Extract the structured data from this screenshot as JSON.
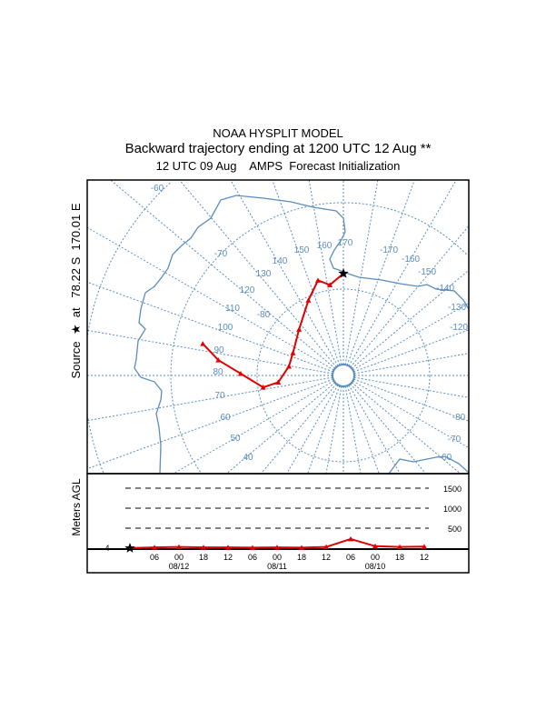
{
  "title": {
    "line1": "NOAA HYSPLIT MODEL",
    "line2": "Backward trajectory ending at 1200 UTC 12 Aug **",
    "line3": "12 UTC 09 Aug    AMPS  Forecast Initialization"
  },
  "source_label": "Source  ★  at   78.22 S  170.01 E",
  "colors": {
    "trajectory": "#e00000",
    "grid": "#5b8dbf",
    "frame": "#000000"
  },
  "map": {
    "projection": "polar stereographic (south pole)",
    "source": {
      "lat": -78.22,
      "lon": 170.01,
      "icon": "star-icon"
    },
    "longitude_labels": [
      "-60",
      "-70",
      "130",
      "140",
      "150",
      "160",
      "170",
      "-170",
      "-160",
      "-150",
      "-140",
      "-130",
      "-120",
      "120",
      "110",
      "100",
      "90",
      "80",
      "70",
      "60",
      "50",
      "40",
      "-80",
      "-70",
      "-60"
    ],
    "latitude_label": "-80",
    "trajectory": [
      {
        "lat": -78.2,
        "lon": 170.0
      },
      {
        "lat": -79.4,
        "lon": 161.5
      },
      {
        "lat": -78.6,
        "lon": 155
      },
      {
        "lat": -80.4,
        "lon": 145
      },
      {
        "lat": -82.6,
        "lon": 126
      },
      {
        "lat": -83.6,
        "lon": 104
      },
      {
        "lat": -83.6,
        "lon": 89.5
      },
      {
        "lat": -82.4,
        "lon": 74
      },
      {
        "lat": -80.6,
        "lon": 71.6
      },
      {
        "lat": -78.1,
        "lon": 81
      },
      {
        "lat": -75.4,
        "lon": 87
      },
      {
        "lat": -73.3,
        "lon": 92.7
      }
    ]
  },
  "height_panel": {
    "ylabel": "Meters AGL",
    "start_height_label": "4",
    "levels": [
      "1500",
      "1000",
      "500"
    ],
    "level_values": [
      1500,
      1000,
      500
    ],
    "time_ticks": [
      "06",
      "00",
      "18",
      "12",
      "06",
      "00",
      "18",
      "12",
      "06",
      "00",
      "18",
      "12"
    ],
    "date_labels": [
      {
        "text": "08/12",
        "tick": 1
      },
      {
        "text": "08/11",
        "tick": 5
      },
      {
        "text": "08/10",
        "tick": 9
      }
    ],
    "heights_m_by_hour_back": [
      {
        "h": 0,
        "m": 4
      },
      {
        "h": 6,
        "m": 20
      },
      {
        "h": 12,
        "m": 30
      },
      {
        "h": 18,
        "m": 20
      },
      {
        "h": 24,
        "m": 20
      },
      {
        "h": 30,
        "m": 15
      },
      {
        "h": 36,
        "m": 20
      },
      {
        "h": 42,
        "m": 15
      },
      {
        "h": 48,
        "m": 30
      },
      {
        "h": 54,
        "m": 230
      },
      {
        "h": 60,
        "m": 50
      },
      {
        "h": 66,
        "m": 30
      },
      {
        "h": 72,
        "m": 40
      }
    ]
  }
}
